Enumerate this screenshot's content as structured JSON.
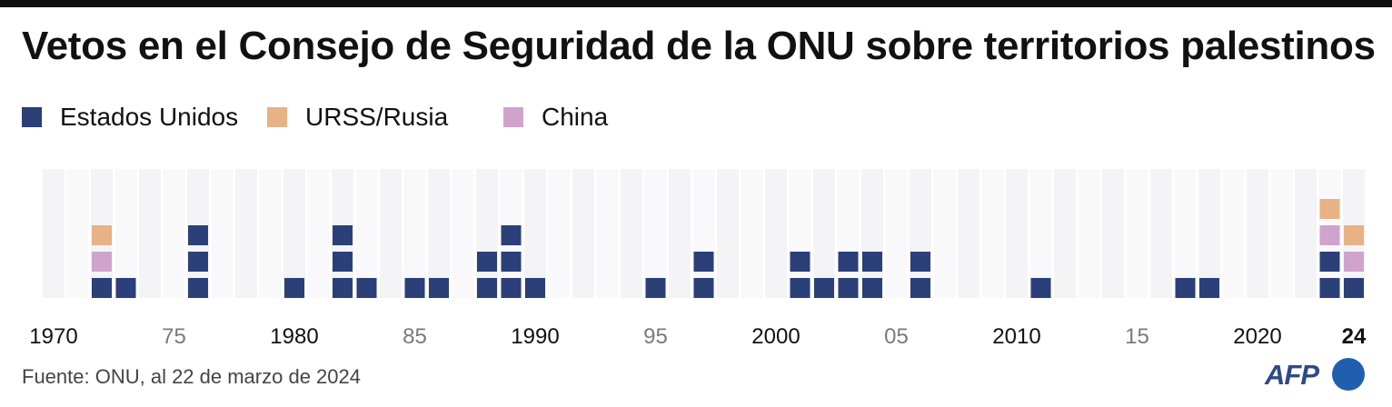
{
  "title": "Vetos en el Consejo de Seguridad de la ONU sobre territorios palestinos",
  "legend": [
    {
      "label": "Estados Unidos",
      "color": "#2b3f78"
    },
    {
      "label": "URSS/Rusia",
      "color": "#e8b285"
    },
    {
      "label": "China",
      "color": "#cfa3cc"
    }
  ],
  "source": "Fuente: ONU, al 22 de marzo de 2024",
  "logo": {
    "text": "AFP",
    "icon": "afp-logo-circle-icon"
  },
  "chart_data": {
    "type": "bar",
    "subtype": "stacked-unit-squares",
    "title": "Vetos en el Consejo de Seguridad de la ONU sobre territorios palestinos",
    "xlim": [
      1970,
      2024
    ],
    "x_ticks": [
      {
        "year": 1970,
        "label": "1970",
        "style": "major"
      },
      {
        "year": 1975,
        "label": "75",
        "style": "minor"
      },
      {
        "year": 1980,
        "label": "1980",
        "style": "major"
      },
      {
        "year": 1985,
        "label": "85",
        "style": "minor"
      },
      {
        "year": 1990,
        "label": "1990",
        "style": "major"
      },
      {
        "year": 1995,
        "label": "95",
        "style": "minor"
      },
      {
        "year": 2000,
        "label": "2000",
        "style": "major"
      },
      {
        "year": 2005,
        "label": "05",
        "style": "minor"
      },
      {
        "year": 2010,
        "label": "2010",
        "style": "major"
      },
      {
        "year": 2015,
        "label": "15",
        "style": "minor"
      },
      {
        "year": 2020,
        "label": "2020",
        "style": "major"
      },
      {
        "year": 2024,
        "label": "24",
        "style": "bold"
      }
    ],
    "series": [
      {
        "name": "Estados Unidos",
        "color": "#2b3f78",
        "points": [
          [
            1972,
            1
          ],
          [
            1973,
            1
          ],
          [
            1976,
            3
          ],
          [
            1980,
            1
          ],
          [
            1982,
            3
          ],
          [
            1983,
            1
          ],
          [
            1985,
            1
          ],
          [
            1986,
            1
          ],
          [
            1988,
            2
          ],
          [
            1989,
            3
          ],
          [
            1990,
            1
          ],
          [
            1995,
            1
          ],
          [
            1997,
            2
          ],
          [
            2001,
            2
          ],
          [
            2002,
            1
          ],
          [
            2003,
            2
          ],
          [
            2004,
            2
          ],
          [
            2006,
            2
          ],
          [
            2011,
            1
          ],
          [
            2017,
            1
          ],
          [
            2018,
            1
          ],
          [
            2023,
            2
          ],
          [
            2024,
            1
          ]
        ]
      },
      {
        "name": "URSS/Rusia",
        "color": "#e8b285",
        "points": [
          [
            1972,
            1
          ],
          [
            2023,
            1
          ],
          [
            2024,
            1
          ]
        ]
      },
      {
        "name": "China",
        "color": "#cfa3cc",
        "points": [
          [
            1972,
            1
          ],
          [
            2023,
            1
          ],
          [
            2024,
            1
          ]
        ]
      }
    ],
    "stack_order": [
      "Estados Unidos",
      "China",
      "URSS/Rusia"
    ],
    "grid": "alternating-year-columns",
    "legend_position": "top-left"
  }
}
